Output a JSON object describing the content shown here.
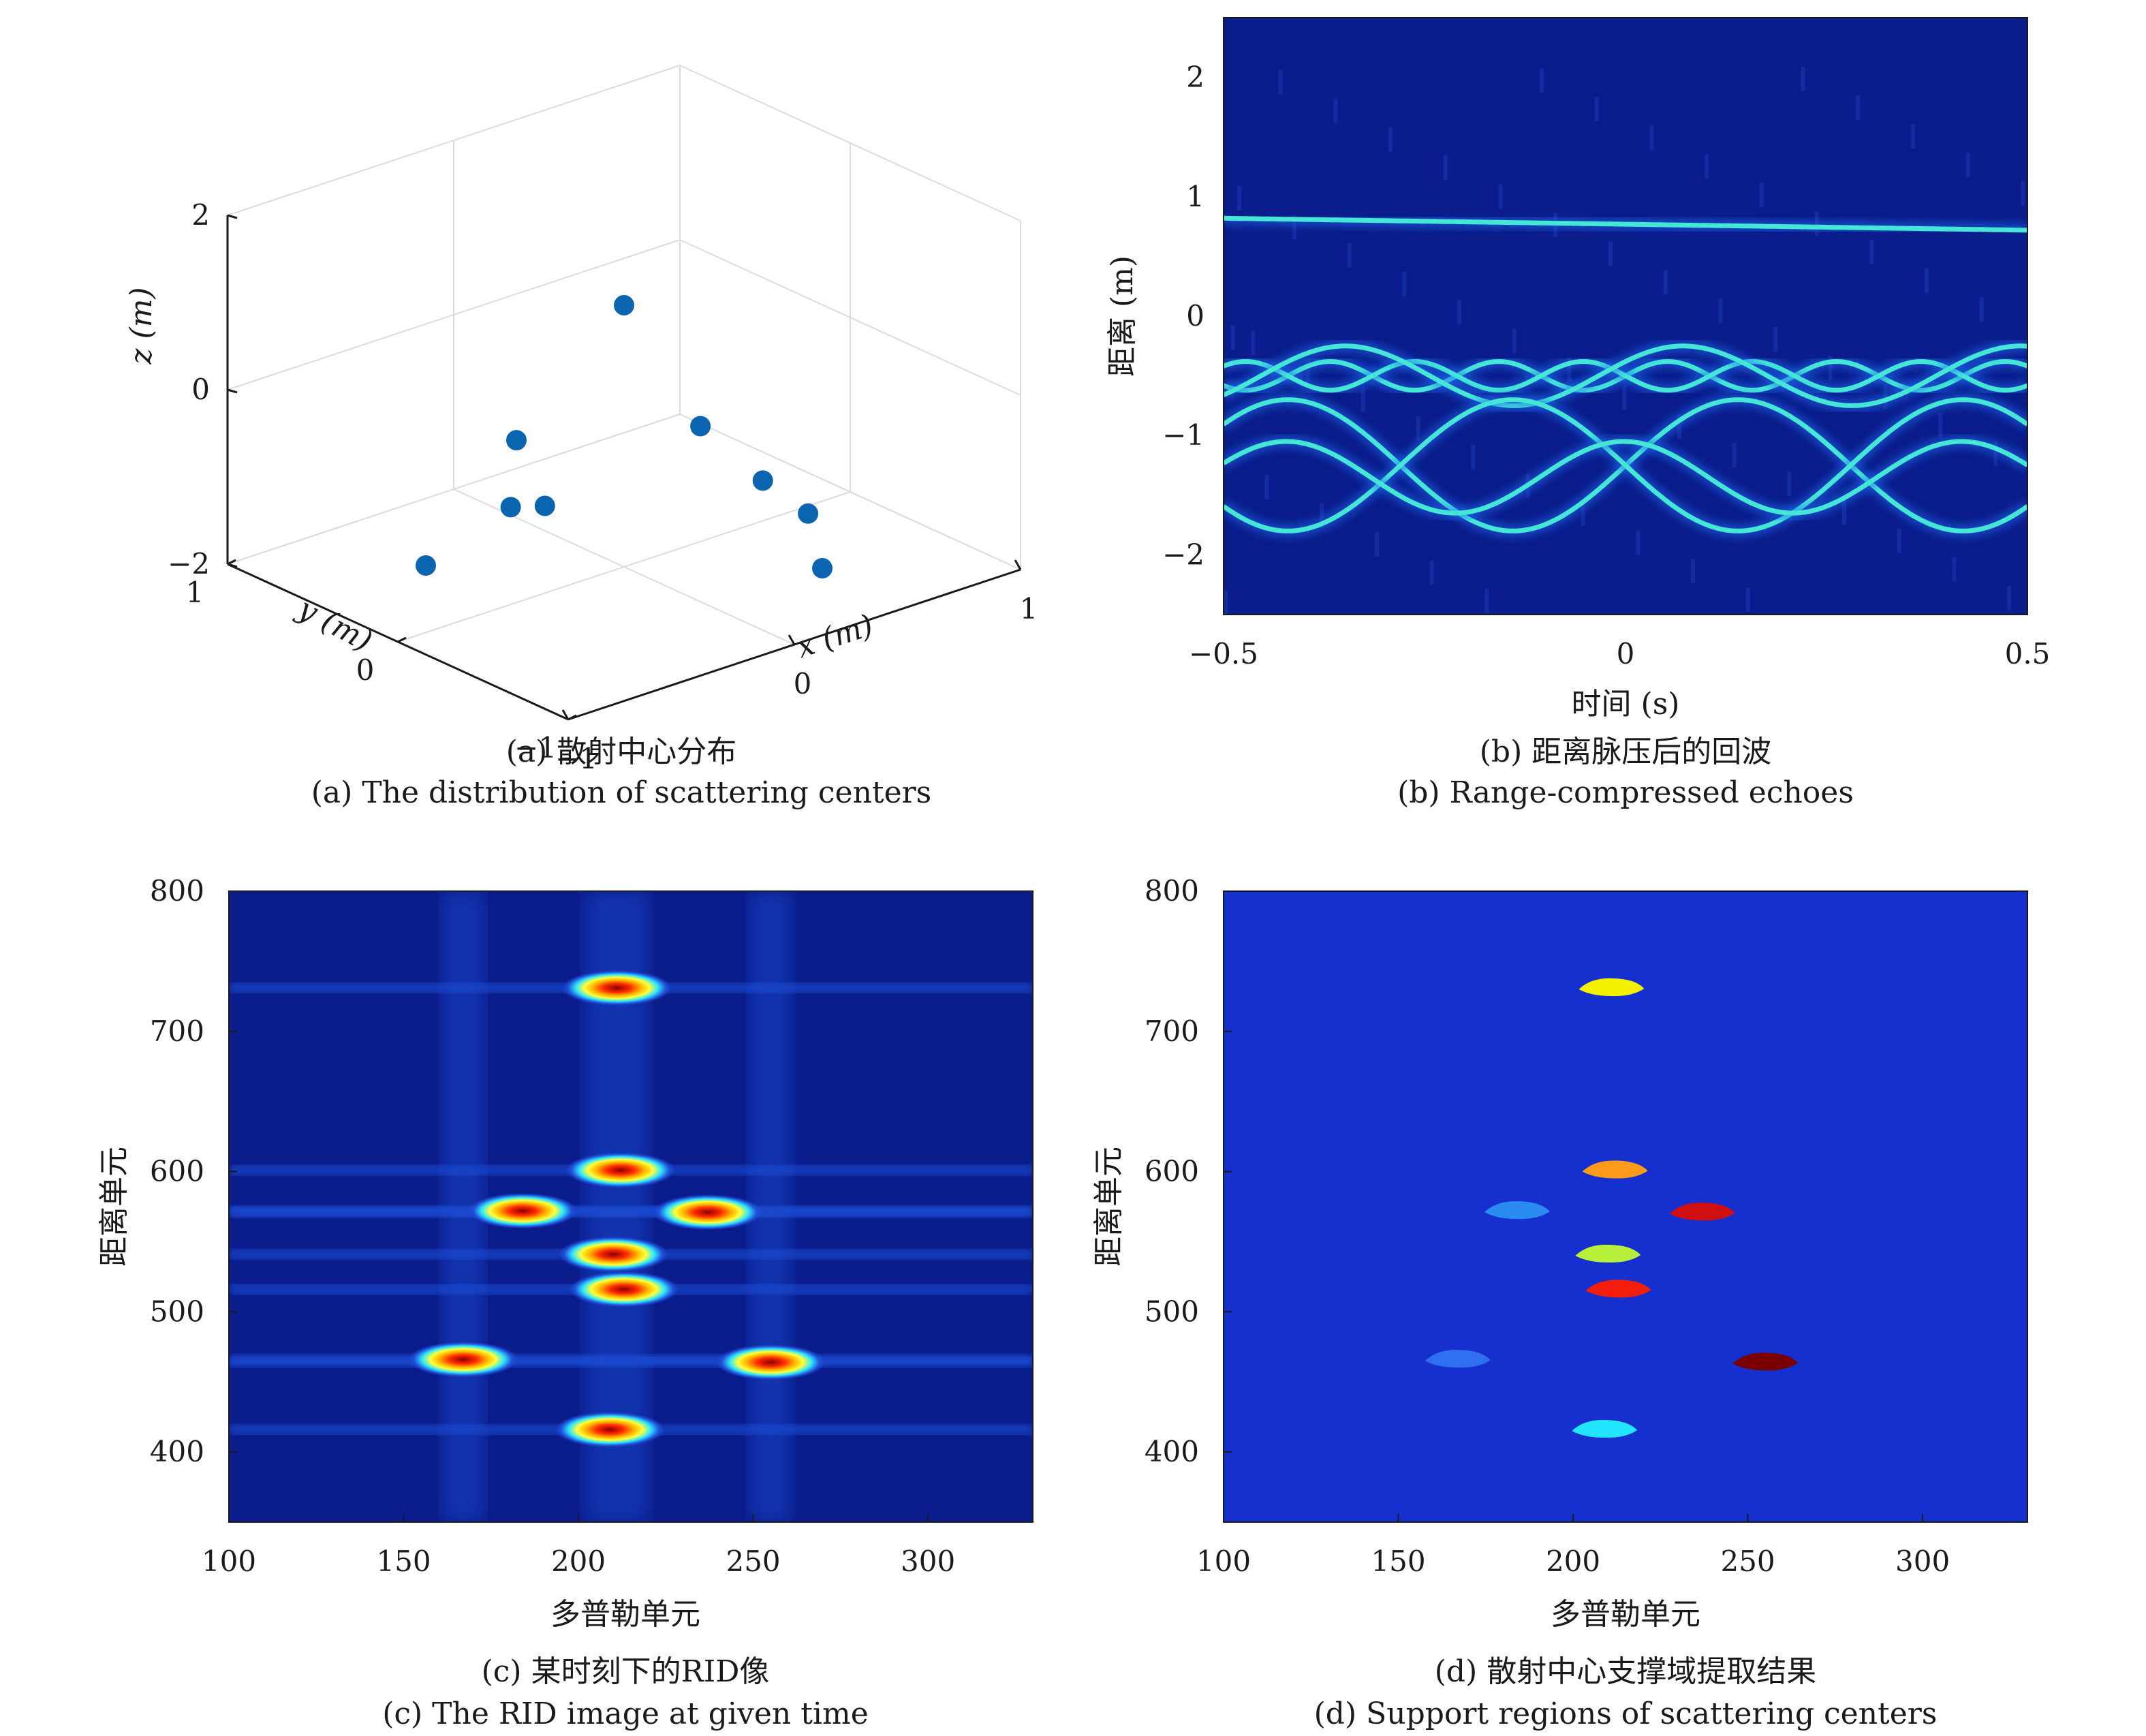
{
  "chart_data": [
    {
      "id": "a",
      "type": "scatter",
      "projection": "3d",
      "caption_cn": "(a) 散射中心分布",
      "caption_en": "(a) The distribution of scattering centers",
      "xlabel": "x (m)",
      "ylabel": "y (m)",
      "zlabel": "z (m)",
      "xlim": [
        -1,
        1
      ],
      "ylim": [
        -1,
        1
      ],
      "zlim": [
        -2,
        2
      ],
      "xticks": [
        "−1",
        "0",
        "1"
      ],
      "yticks": [
        "−1",
        "0",
        "1"
      ],
      "zticks": [
        "−2",
        "0",
        "2"
      ],
      "marker_color": "#0a64b0",
      "points": [
        {
          "x": 0.0,
          "y": 0.0,
          "z": 1.0
        },
        {
          "x": -0.25,
          "y": 0.3,
          "z": -0.6
        },
        {
          "x": 0.3,
          "y": -0.05,
          "z": -0.6
        },
        {
          "x": -0.35,
          "y": 0.0,
          "z": -1.0
        },
        {
          "x": 0.35,
          "y": -0.35,
          "z": -1.0
        },
        {
          "x": -0.2,
          "y": 0.4,
          "z": -1.5
        },
        {
          "x": 0.55,
          "y": -0.35,
          "z": -1.55
        },
        {
          "x": -0.5,
          "y": 0.5,
          "z": -2.0
        },
        {
          "x": 0.5,
          "y": -0.5,
          "z": -2.0
        }
      ]
    },
    {
      "id": "b",
      "type": "heatmap",
      "caption_cn": "(b) 距离脉压后的回波",
      "caption_en": "(b) Range-compressed echoes",
      "xlabel": "时间 (s)",
      "ylabel": "距离 (m)",
      "xlim": [
        -0.5,
        0.5
      ],
      "ylim": [
        -2.5,
        2.5
      ],
      "xticks": [
        "−0.5",
        "0",
        "0.5"
      ],
      "yticks": [
        "−2",
        "−1",
        "0",
        "1",
        "2"
      ],
      "background": "#0b1d8c",
      "curve_color": "#45e6d6",
      "tracks": [
        {
          "type": "line",
          "start": 0.82,
          "end": 0.72
        },
        {
          "type": "sine",
          "center": -0.5,
          "amplitude": 0.12,
          "period": 0.21,
          "phase": 0
        },
        {
          "type": "sine",
          "center": -0.5,
          "amplitude": 0.12,
          "period": 0.21,
          "phase": 3.1416
        },
        {
          "type": "sine",
          "center": -0.5,
          "amplitude": 0.25,
          "period": 0.42,
          "phase": 0.5
        },
        {
          "type": "sine",
          "center": -1.25,
          "amplitude": 0.55,
          "period": 0.56,
          "phase": 0
        },
        {
          "type": "sine",
          "center": -1.25,
          "amplitude": 0.55,
          "period": 0.56,
          "phase": 3.1416
        },
        {
          "type": "sine",
          "center": -1.35,
          "amplitude": 0.3,
          "period": 0.42,
          "phase": 1.6
        }
      ]
    },
    {
      "id": "c",
      "type": "heatmap",
      "caption_cn": "(c) 某时刻下的RID像",
      "caption_en": "(c) The RID image at given time",
      "xlabel": "多普勒单元",
      "ylabel": "距离单元",
      "xlim": [
        100,
        330
      ],
      "ylim": [
        350,
        800
      ],
      "xticks": [
        "100",
        "150",
        "200",
        "250",
        "300"
      ],
      "yticks": [
        "400",
        "500",
        "600",
        "700",
        "800"
      ],
      "background": "#0b1d8c",
      "band_color": "#1f4fd8",
      "peak_colors": [
        "#8b0000",
        "#ff2a00",
        "#ffb800",
        "#ffff3a",
        "#2fe8ff",
        "#1f4fd8"
      ],
      "peaks": [
        {
          "doppler": 211,
          "range": 731
        },
        {
          "doppler": 212,
          "range": 601
        },
        {
          "doppler": 184,
          "range": 572
        },
        {
          "doppler": 237,
          "range": 571
        },
        {
          "doppler": 210,
          "range": 541
        },
        {
          "doppler": 213,
          "range": 516
        },
        {
          "doppler": 167,
          "range": 466
        },
        {
          "doppler": 255,
          "range": 464
        },
        {
          "doppler": 209,
          "range": 416
        }
      ]
    },
    {
      "id": "d",
      "type": "heatmap",
      "caption_cn": "(d) 散射中心支撑域提取结果",
      "caption_en": "(d) Support regions of scattering centers",
      "xlabel": "多普勒单元",
      "ylabel": "距离单元",
      "xlim": [
        100,
        330
      ],
      "ylim": [
        350,
        800
      ],
      "xticks": [
        "100",
        "150",
        "200",
        "250",
        "300"
      ],
      "yticks": [
        "400",
        "500",
        "600",
        "700",
        "800"
      ],
      "background": "#1530cf",
      "regions": [
        {
          "doppler": 211,
          "range": 731,
          "color": "#f4f000"
        },
        {
          "doppler": 212,
          "range": 601,
          "color": "#ff9a1a"
        },
        {
          "doppler": 184,
          "range": 572,
          "color": "#2a8cf0"
        },
        {
          "doppler": 237,
          "range": 571,
          "color": "#d01010"
        },
        {
          "doppler": 210,
          "range": 541,
          "color": "#b8ef3a"
        },
        {
          "doppler": 213,
          "range": 516,
          "color": "#f21d0a"
        },
        {
          "doppler": 167,
          "range": 466,
          "color": "#2f6ff0"
        },
        {
          "doppler": 255,
          "range": 464,
          "color": "#7a0000"
        },
        {
          "doppler": 209,
          "range": 416,
          "color": "#22e6ff"
        }
      ]
    }
  ]
}
